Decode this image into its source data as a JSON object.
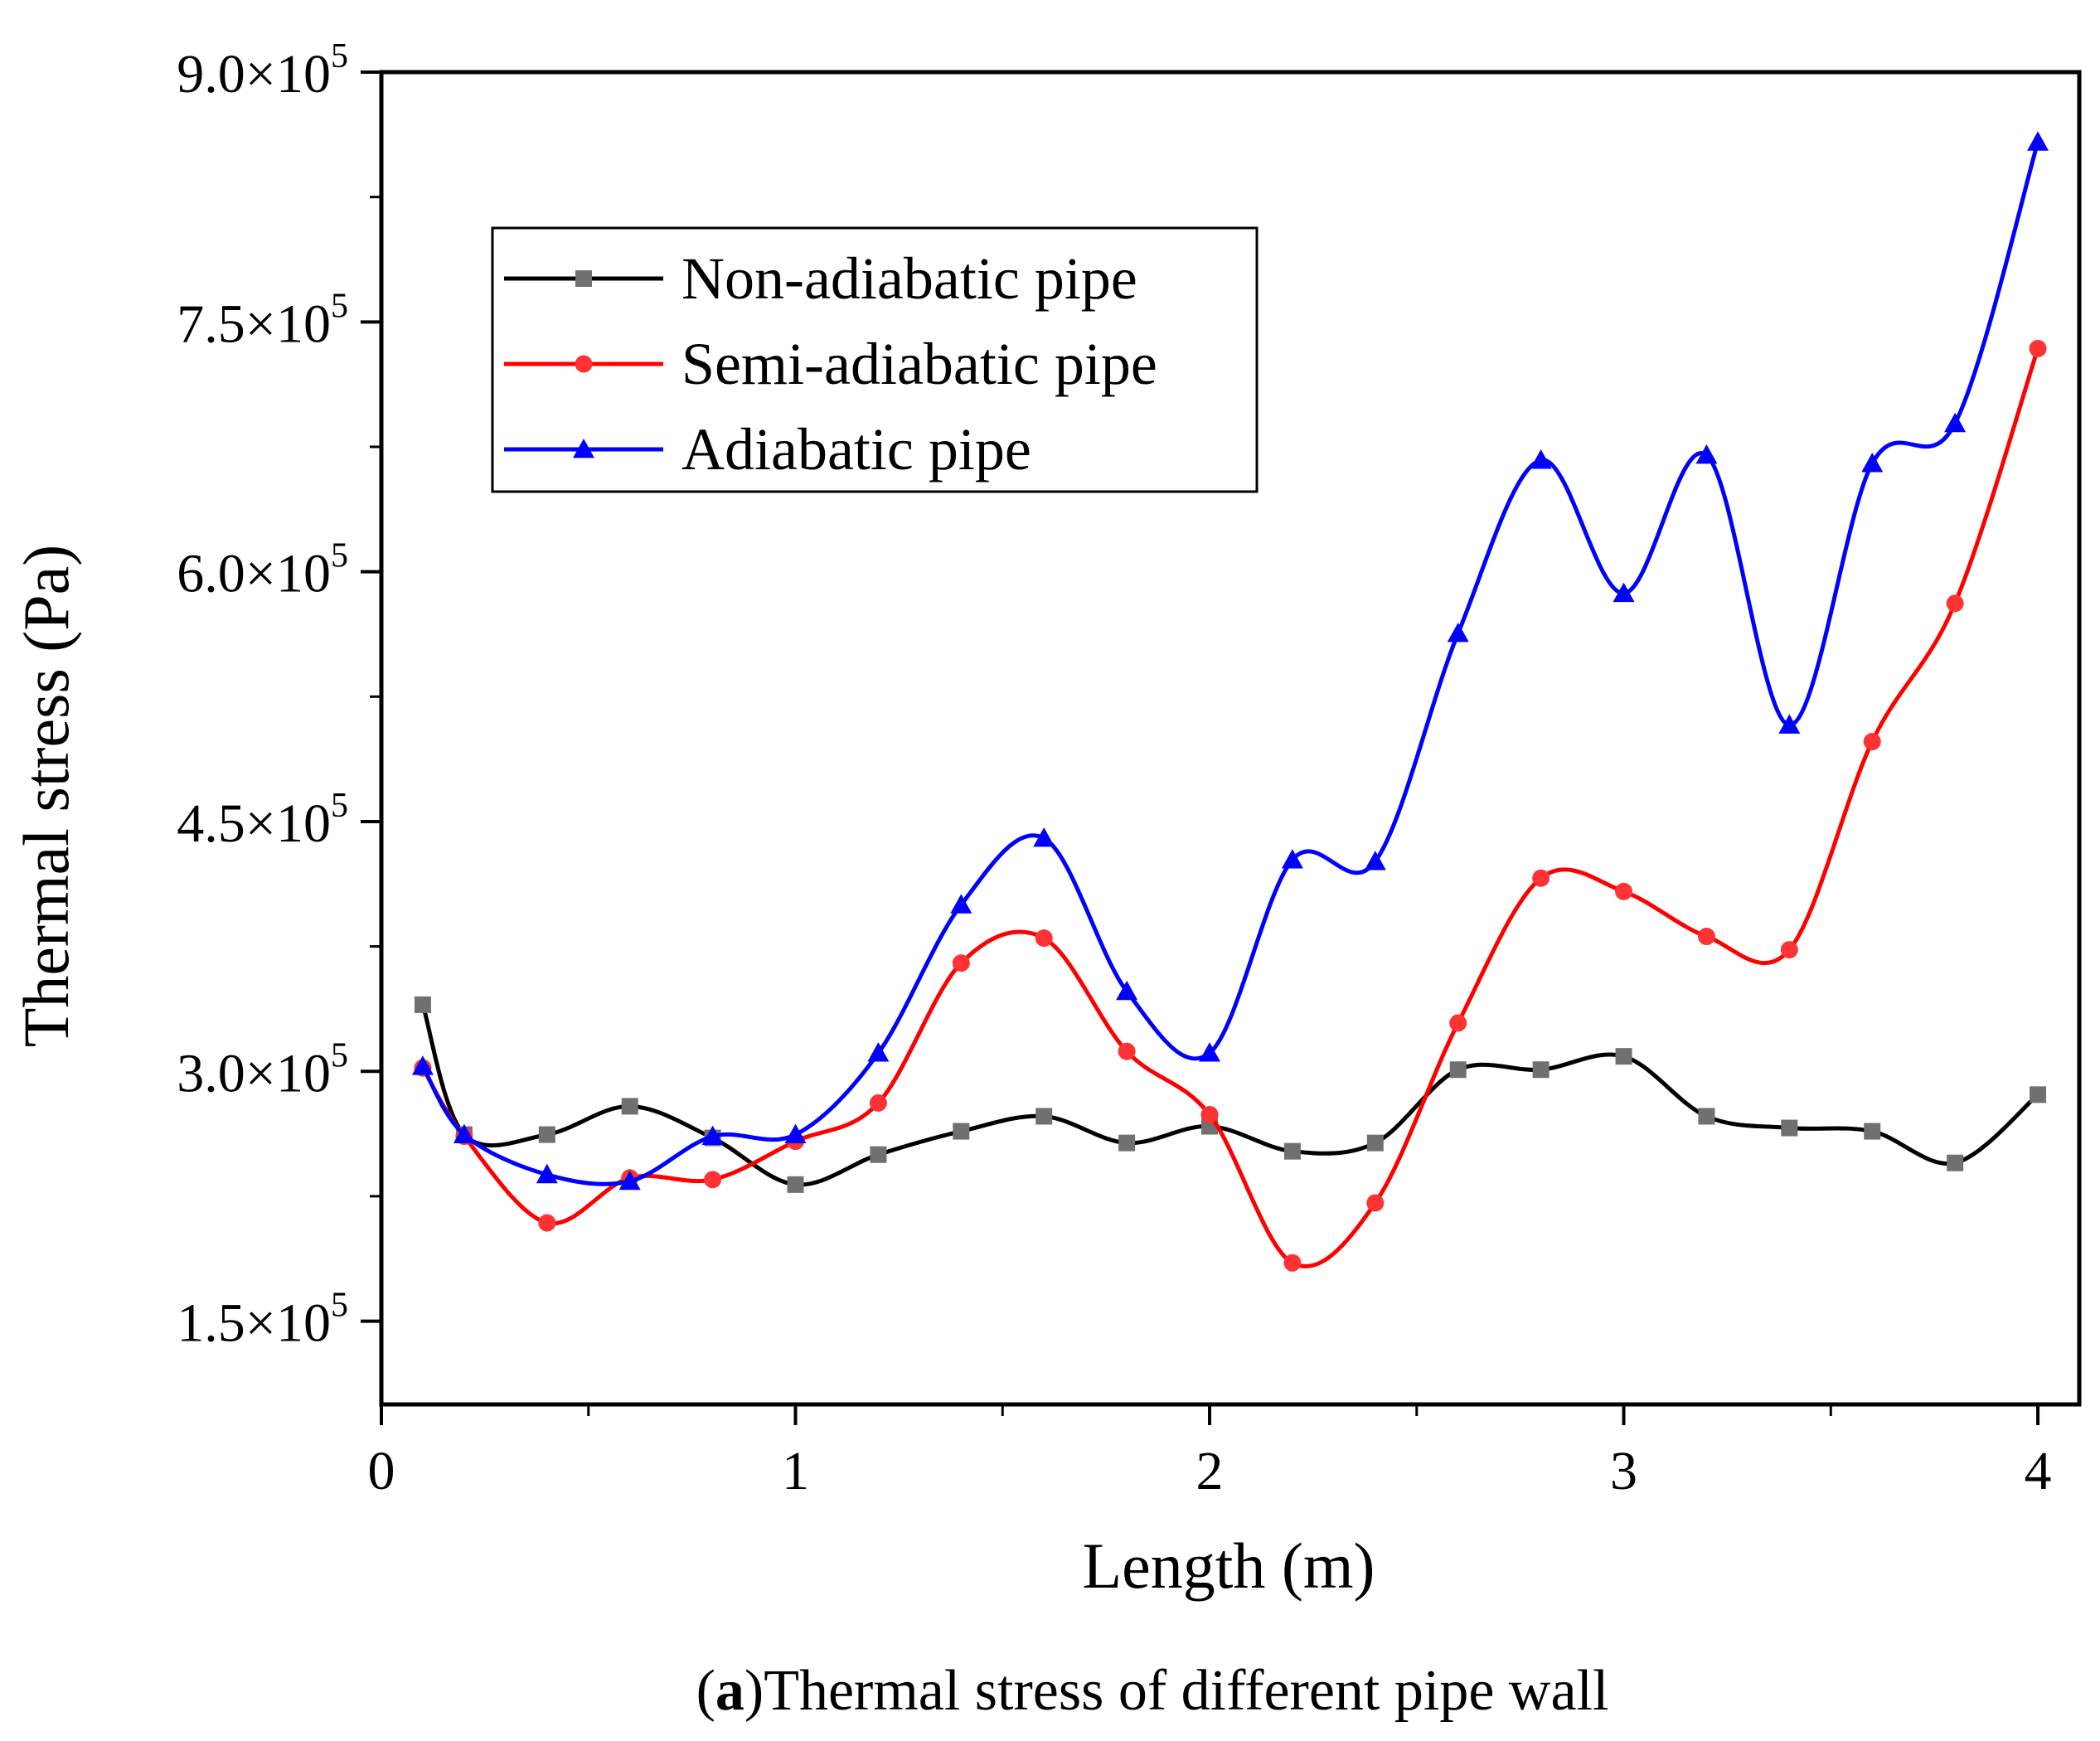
{
  "caption": {
    "prefix": "(",
    "letter": "a",
    "text": ")Thermal stress of different pipe wall"
  },
  "chart_data": {
    "type": "line",
    "title": "",
    "xlabel": "Length (m)",
    "ylabel": "Thermal stress (Pa)",
    "xlim": [
      0,
      4.1
    ],
    "ylim": [
      100000,
      900000
    ],
    "x_ticks": [
      0,
      1,
      2,
      3,
      4
    ],
    "x_tick_labels": [
      "0",
      "1",
      "2",
      "3",
      "4"
    ],
    "y_ticks": [
      150000,
      300000,
      450000,
      600000,
      750000,
      900000
    ],
    "y_tick_labels": [
      {
        "mantissa": "1.5×10",
        "exp": "5"
      },
      {
        "mantissa": "3.0×10",
        "exp": "5"
      },
      {
        "mantissa": "4.5×10",
        "exp": "5"
      },
      {
        "mantissa": "6.0×10",
        "exp": "5"
      },
      {
        "mantissa": "7.5×10",
        "exp": "5"
      },
      {
        "mantissa": "9.0×10",
        "exp": "5"
      }
    ],
    "legend_position": "top-left",
    "x": [
      0.1,
      0.2,
      0.4,
      0.6,
      0.8,
      1.0,
      1.2,
      1.4,
      1.6,
      1.8,
      2.0,
      2.2,
      2.4,
      2.6,
      2.8,
      3.0,
      3.2,
      3.4,
      3.6,
      3.8,
      4.0
    ],
    "series": [
      {
        "name": "Non-adiabatic pipe",
        "color": "#000000",
        "marker_color": "#707070",
        "marker": "square",
        "values": [
          340000,
          262000,
          262000,
          279000,
          260000,
          232000,
          250000,
          264000,
          273000,
          257000,
          267000,
          252000,
          257000,
          301000,
          301000,
          309000,
          273000,
          266000,
          264000,
          245000,
          286000
        ]
      },
      {
        "name": "Semi-adiabatic pipe",
        "color": "#ff0000",
        "marker_color": "#ff3333",
        "marker": "circle",
        "values": [
          302000,
          261000,
          209000,
          236000,
          235000,
          258000,
          281000,
          365000,
          380000,
          312000,
          274000,
          185000,
          221000,
          329000,
          416000,
          408000,
          381000,
          373000,
          498000,
          581000,
          734000
        ]
      },
      {
        "name": "Adiabatic pipe",
        "color": "#0000ff",
        "marker_color": "#0000ff",
        "marker": "triangle",
        "values": [
          303000,
          262000,
          238000,
          234000,
          261000,
          262000,
          311000,
          400000,
          440000,
          348000,
          311000,
          427000,
          426000,
          563000,
          667000,
          587000,
          670000,
          508000,
          665000,
          689000,
          858000
        ]
      }
    ]
  }
}
